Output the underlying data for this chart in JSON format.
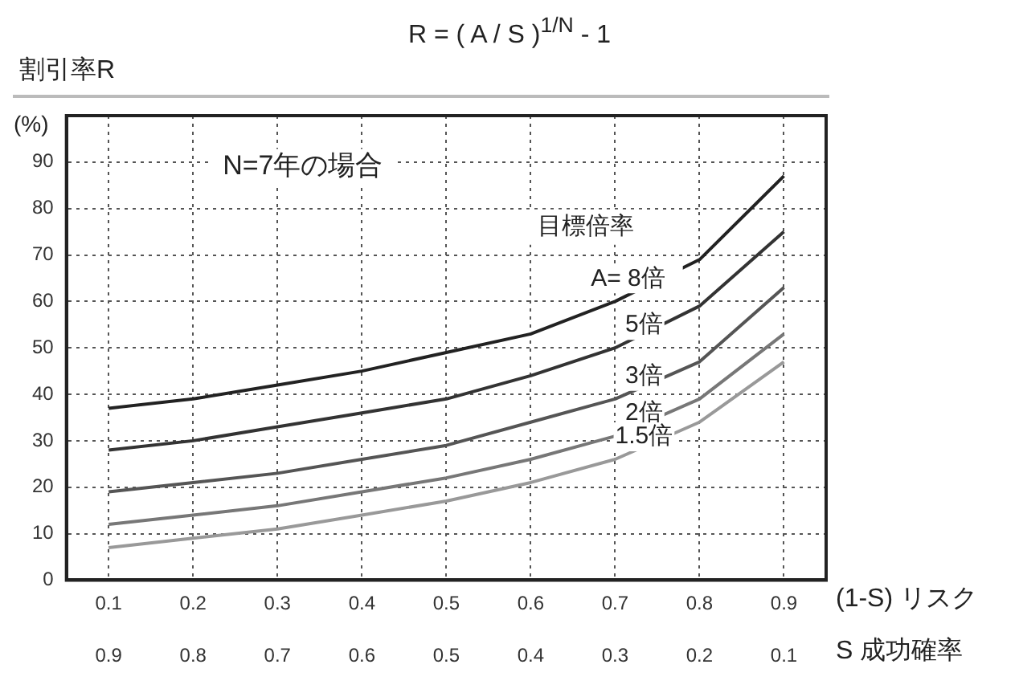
{
  "chart_data": {
    "type": "line",
    "title": "R = ( A / S )$^{1/N}$ - 1",
    "ylabel": "割引率R",
    "xlabel": "(1-S) リスク",
    "x2label": "S 成功確率",
    "annotations": [
      "(%)",
      "N=7年の場合",
      "目標倍率"
    ],
    "x": [
      0.1,
      0.2,
      0.3,
      0.4,
      0.5,
      0.6,
      0.7,
      0.8,
      0.9
    ],
    "series": [
      {
        "name": "A= 8倍",
        "color": "#222222",
        "values": [
          37,
          39,
          42,
          45,
          49,
          53,
          60,
          69,
          87
        ]
      },
      {
        "name": "5倍",
        "color": "#333333",
        "values": [
          28,
          30,
          33,
          36,
          39,
          44,
          50,
          59,
          75
        ]
      },
      {
        "name": "3倍",
        "color": "#555555",
        "values": [
          19,
          21,
          23,
          26,
          29,
          34,
          39,
          47,
          63
        ]
      },
      {
        "name": "2倍",
        "color": "#777777",
        "values": [
          12,
          14,
          16,
          19,
          22,
          26,
          31,
          39,
          53
        ]
      },
      {
        "name": "1.5倍",
        "color": "#999999",
        "values": [
          7,
          9,
          11,
          14,
          17,
          21,
          26,
          34,
          47
        ]
      }
    ],
    "xlim": [
      0.05,
      0.95
    ],
    "xticks": [
      0.1,
      0.2,
      0.3,
      0.4,
      0.5,
      0.6,
      0.7,
      0.8,
      0.9
    ],
    "x2lim": [
      0.95,
      0.05
    ],
    "x2ticks": [
      0.9,
      0.8,
      0.7,
      0.6,
      0.5,
      0.4,
      0.3,
      0.2,
      0.1
    ],
    "ylim": [
      0,
      100
    ],
    "yticks": [
      0,
      10,
      20,
      30,
      40,
      50,
      60,
      70,
      80,
      90
    ],
    "grid": true,
    "legend": false,
    "marker": "none",
    "line_style": "solid"
  }
}
